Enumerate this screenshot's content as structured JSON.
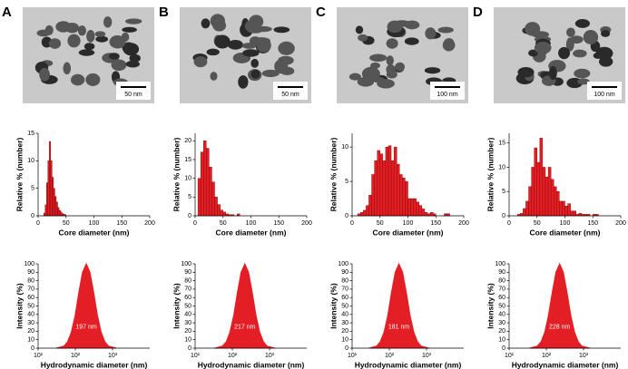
{
  "panels": [
    {
      "label": "A",
      "scale_bar": "50 nm"
    },
    {
      "label": "B",
      "scale_bar": "50 nm"
    },
    {
      "label": "C",
      "scale_bar": "100 nm"
    },
    {
      "label": "D",
      "scale_bar": "100 nm"
    }
  ],
  "chart_data": [
    {
      "type": "histogram",
      "x_label": "Core diameter (nm)",
      "y_label": "Relative % (number)",
      "color": "#e31e24",
      "bins": [
        10,
        12.5,
        15,
        17.5,
        20,
        22.5,
        25,
        27.5,
        30,
        32.5,
        35,
        37.5,
        40,
        42.5,
        45,
        47.5,
        50
      ],
      "values": [
        0.5,
        2,
        6,
        10,
        13.5,
        10,
        7,
        5,
        3.5,
        2.5,
        1.5,
        1,
        0.7,
        0.4,
        0.3,
        0.2
      ],
      "xlim": [
        0,
        200
      ],
      "xticks": [
        0,
        50,
        100,
        150,
        200
      ],
      "ylim": [
        0,
        15
      ],
      "yticks": [
        0,
        5,
        10,
        15
      ]
    },
    {
      "type": "histogram",
      "x_label": "Core diameter (nm)",
      "y_label": "Relative % (number)",
      "color": "#e31e24",
      "bins": [
        5,
        10,
        15,
        20,
        25,
        30,
        35,
        40,
        45,
        50,
        55,
        60,
        65,
        70,
        75,
        80
      ],
      "values": [
        10,
        17,
        20,
        18,
        13,
        9,
        5,
        3,
        1.5,
        1,
        0.5,
        0.3,
        0.3,
        0,
        0.5
      ],
      "xlim": [
        0,
        200
      ],
      "xticks": [
        0,
        50,
        100,
        150,
        200
      ],
      "ylim": [
        0,
        22
      ],
      "yticks": [
        0,
        5,
        10,
        15,
        20
      ]
    },
    {
      "type": "histogram",
      "x_label": "Core diameter (nm)",
      "y_label": "Relative % (number)",
      "color": "#e31e24",
      "bins": [
        10,
        15,
        20,
        25,
        30,
        35,
        40,
        45,
        50,
        55,
        60,
        65,
        70,
        75,
        80,
        85,
        90,
        95,
        100,
        105,
        110,
        115,
        120,
        125,
        130,
        135,
        140,
        145,
        150,
        155,
        160,
        165,
        170,
        175
      ],
      "values": [
        0.3,
        0.5,
        0.8,
        1.5,
        3,
        6,
        8,
        9.5,
        9,
        8,
        10,
        10.2,
        8,
        10,
        7.5,
        6,
        5.5,
        5,
        2.5,
        2.5,
        2.5,
        2,
        1.5,
        1,
        0.5,
        0.3,
        0.5,
        0.3,
        0,
        0,
        0,
        0.3,
        0.3
      ],
      "xlim": [
        0,
        200
      ],
      "xticks": [
        0,
        50,
        100,
        150,
        200
      ],
      "ylim": [
        0,
        12
      ],
      "yticks": [
        0,
        5,
        10
      ]
    },
    {
      "type": "histogram",
      "x_label": "Core diameter (nm)",
      "y_label": "Relative % (number)",
      "color": "#e31e24",
      "bins": [
        15,
        20,
        25,
        30,
        35,
        40,
        45,
        50,
        55,
        60,
        65,
        70,
        75,
        80,
        85,
        90,
        95,
        100,
        105,
        110,
        115,
        120,
        125,
        130,
        135,
        140,
        145,
        150,
        155,
        160
      ],
      "values": [
        0.3,
        0.5,
        1.5,
        3,
        6,
        10,
        14,
        11,
        16,
        10,
        8,
        10,
        7.5,
        6,
        5,
        3,
        3,
        2,
        2.5,
        1,
        1,
        0.3,
        0.5,
        0.3,
        0.3,
        0.3,
        0,
        0.3,
        0.3
      ],
      "xlim": [
        0,
        200
      ],
      "xticks": [
        0,
        50,
        100,
        150,
        200
      ],
      "ylim": [
        0,
        17
      ],
      "yticks": [
        0,
        5,
        10,
        15
      ]
    },
    {
      "type": "area",
      "log_x": true,
      "x_label": "Hydrodynamic diameter (nm)",
      "y_label": "Intensity (%)",
      "color": "#e31e24",
      "annotation": "197 nm",
      "x": [
        31,
        49,
        62,
        78,
        99,
        124,
        156,
        197,
        248,
        312,
        393,
        495,
        623,
        784,
        1243
      ],
      "values": [
        0.1,
        2.4,
        7.6,
        19,
        39,
        66,
        90,
        100,
        90,
        66,
        39,
        19,
        7.6,
        2.4,
        0.1
      ],
      "xlim": [
        10,
        10000
      ],
      "xticks": [
        {
          "value": 10,
          "label": "10¹"
        },
        {
          "value": 100,
          "label": "10²"
        },
        {
          "value": 1000,
          "label": "10³"
        }
      ],
      "ylim": [
        0,
        100
      ],
      "yticks": [
        0,
        10,
        20,
        30,
        40,
        50,
        60,
        70,
        80,
        90,
        100
      ]
    },
    {
      "type": "area",
      "log_x": true,
      "x_label": "Hydrodynamic diameter (nm)",
      "y_label": "Intensity (%)",
      "color": "#e31e24",
      "annotation": "217 nm",
      "x": [
        34,
        54,
        69,
        86,
        109,
        137,
        172,
        217,
        273,
        344,
        433,
        545,
        686,
        864,
        1369
      ],
      "values": [
        0.1,
        2.4,
        7.6,
        19,
        39,
        66,
        90,
        100,
        90,
        66,
        39,
        19,
        7.6,
        2.4,
        0.1
      ],
      "xlim": [
        10,
        10000
      ],
      "xticks": [
        {
          "value": 10,
          "label": "10¹"
        },
        {
          "value": 100,
          "label": "10²"
        },
        {
          "value": 1000,
          "label": "10³"
        }
      ],
      "ylim": [
        0,
        100
      ],
      "yticks": [
        0,
        10,
        20,
        30,
        40,
        50,
        60,
        70,
        80,
        90,
        100
      ]
    },
    {
      "type": "area",
      "log_x": true,
      "x_label": "Hydrodynamic diameter (nm)",
      "y_label": "Intensity (%)",
      "color": "#e31e24",
      "annotation": "181 nm",
      "x": [
        29,
        45,
        57,
        72,
        91,
        114,
        144,
        181,
        228,
        287,
        361,
        455,
        572,
        721,
        1142
      ],
      "values": [
        0.1,
        2.4,
        7.6,
        19,
        39,
        66,
        90,
        100,
        90,
        66,
        39,
        19,
        7.6,
        2.4,
        0.1
      ],
      "xlim": [
        10,
        10000
      ],
      "xticks": [
        {
          "value": 10,
          "label": "10¹"
        },
        {
          "value": 100,
          "label": "10²"
        },
        {
          "value": 1000,
          "label": "10³"
        }
      ],
      "ylim": [
        0,
        100
      ],
      "yticks": [
        0,
        10,
        20,
        30,
        40,
        50,
        60,
        70,
        80,
        90,
        100
      ]
    },
    {
      "type": "area",
      "log_x": true,
      "x_label": "Hydrodynamic diameter (nm)",
      "y_label": "Intensity (%)",
      "color": "#e31e24",
      "annotation": "228 nm",
      "x": [
        36,
        57,
        72,
        91,
        114,
        144,
        181,
        228,
        287,
        361,
        455,
        573,
        721,
        908,
        1439
      ],
      "values": [
        0.1,
        2.4,
        7.6,
        19,
        39,
        66,
        90,
        100,
        90,
        66,
        39,
        19,
        7.6,
        2.4,
        0.1
      ],
      "xlim": [
        10,
        10000
      ],
      "xticks": [
        {
          "value": 10,
          "label": "10¹"
        },
        {
          "value": 100,
          "label": "10²"
        },
        {
          "value": 1000,
          "label": "10³"
        }
      ],
      "ylim": [
        0,
        100
      ],
      "yticks": [
        0,
        10,
        20,
        30,
        40,
        50,
        60,
        70,
        80,
        90,
        100
      ]
    }
  ]
}
